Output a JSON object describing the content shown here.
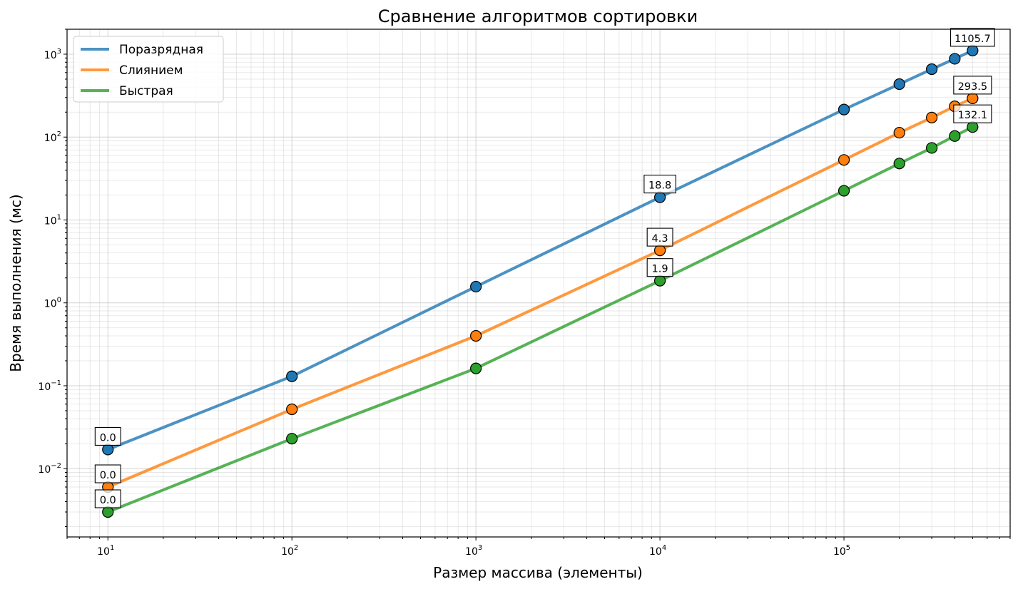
{
  "chart_data": {
    "type": "line",
    "title": "Сравнение алгоритмов сортировки",
    "xlabel": "Размер массива (элементы)",
    "ylabel": "Время выполнения (мс)",
    "xscale": "log",
    "yscale": "log",
    "xlim": [
      6,
      800000
    ],
    "ylim": [
      0.0015,
      2000
    ],
    "xticks": [
      {
        "value": 10,
        "base": "10",
        "exp": "1"
      },
      {
        "value": 100,
        "base": "10",
        "exp": "2"
      },
      {
        "value": 1000,
        "base": "10",
        "exp": "3"
      },
      {
        "value": 10000,
        "base": "10",
        "exp": "4"
      },
      {
        "value": 100000,
        "base": "10",
        "exp": "5"
      }
    ],
    "yticks": [
      {
        "value": 0.01,
        "base": "10",
        "exp": "−2"
      },
      {
        "value": 0.1,
        "base": "10",
        "exp": "−1"
      },
      {
        "value": 1,
        "base": "10",
        "exp": "0"
      },
      {
        "value": 10,
        "base": "10",
        "exp": "1"
      },
      {
        "value": 100,
        "base": "10",
        "exp": "2"
      },
      {
        "value": 1000,
        "base": "10",
        "exp": "3"
      }
    ],
    "grid": true,
    "legend_position": "top-left",
    "x": [
      10,
      100,
      1000,
      10000,
      100000,
      200000,
      300000,
      400000,
      500000
    ],
    "series": [
      {
        "name": "Поразрядная",
        "color": "#1f77b4",
        "values": [
          0.017,
          0.13,
          1.57,
          18.8,
          215,
          435,
          660,
          880,
          1105.7
        ],
        "labels": [
          {
            "x": 10,
            "text": "0.0"
          },
          {
            "x": 10000,
            "text": "18.8"
          },
          {
            "x": 500000,
            "text": "1105.7"
          }
        ]
      },
      {
        "name": "Слиянием",
        "color": "#ff7f0e",
        "values": [
          0.006,
          0.052,
          0.4,
          4.3,
          53,
          113,
          172,
          235,
          293.5
        ],
        "labels": [
          {
            "x": 10,
            "text": "0.0"
          },
          {
            "x": 10000,
            "text": "4.3"
          },
          {
            "x": 500000,
            "text": "293.5"
          }
        ]
      },
      {
        "name": "Быстрая",
        "color": "#2ca02c",
        "values": [
          0.003,
          0.023,
          0.162,
          1.85,
          22.5,
          48,
          74,
          103,
          132.1
        ],
        "labels": [
          {
            "x": 10,
            "text": "0.0"
          },
          {
            "x": 10000,
            "text": "1.9"
          },
          {
            "x": 500000,
            "text": "132.1"
          }
        ]
      }
    ]
  }
}
